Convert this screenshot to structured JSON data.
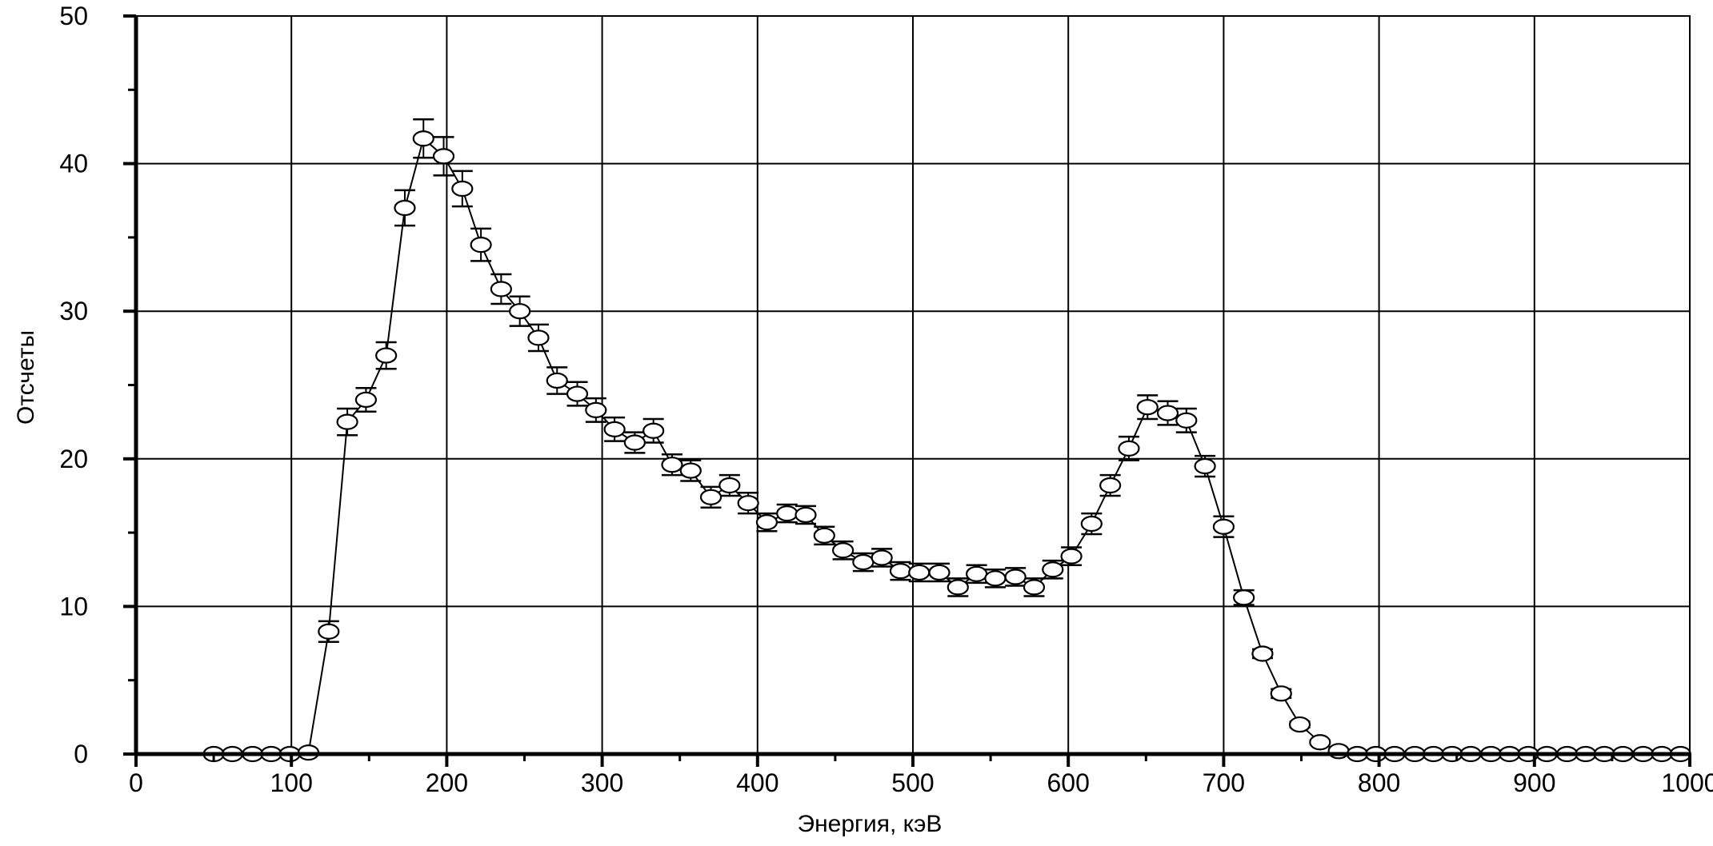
{
  "chart_data": {
    "type": "scatter",
    "title": "",
    "xlabel": "Энергия, кэВ",
    "ylabel": "Отсчеты",
    "xlim": [
      0,
      1000
    ],
    "ylim": [
      0,
      50
    ],
    "xticks": [
      "0",
      "100",
      "200",
      "300",
      "400",
      "500",
      "600",
      "700",
      "800",
      "900",
      "1000"
    ],
    "yticks": [
      "0",
      "10",
      "20",
      "30",
      "40",
      "50"
    ],
    "grid": true,
    "legend": "none",
    "marker": "open-ellipse",
    "line_color": "#000000",
    "series": [
      {
        "x": [
          50,
          62,
          75,
          87,
          99,
          111,
          124,
          136,
          148,
          161,
          173,
          185,
          198,
          210,
          222,
          235,
          247,
          259,
          271,
          284,
          296,
          308,
          321,
          333,
          345,
          357,
          370,
          382,
          394,
          406,
          419,
          431,
          443,
          455,
          468,
          480,
          492,
          504,
          517,
          529,
          541,
          553,
          566,
          578,
          590,
          602,
          615,
          627,
          639,
          651,
          664,
          676,
          688,
          700,
          713,
          725,
          737,
          749,
          762,
          774,
          786,
          798,
          810,
          823,
          835,
          847,
          859,
          872,
          884,
          896,
          908,
          921,
          933,
          945,
          957,
          970,
          982,
          994
        ],
        "y": [
          0,
          0,
          0,
          0,
          0,
          0.1,
          8.3,
          22.5,
          24.0,
          27.0,
          37.0,
          41.7,
          40.5,
          38.3,
          34.5,
          31.5,
          30.0,
          28.2,
          25.3,
          24.4,
          23.3,
          22.0,
          21.1,
          21.9,
          19.6,
          19.2,
          17.4,
          18.2,
          17.0,
          15.7,
          16.3,
          16.2,
          14.8,
          13.8,
          13.0,
          13.3,
          12.4,
          12.3,
          12.3,
          11.3,
          12.2,
          11.9,
          12.0,
          11.3,
          12.5,
          13.4,
          15.6,
          18.2,
          20.7,
          23.5,
          23.1,
          22.6,
          19.5,
          15.4,
          10.6,
          6.8,
          4.1,
          2.0,
          0.8,
          0.2,
          0,
          0,
          0,
          0,
          0,
          0,
          0,
          0,
          0,
          0,
          0,
          0,
          0,
          0,
          0,
          0,
          0,
          0
        ],
        "yerr": [
          0,
          0,
          0,
          0,
          0,
          0.1,
          0.7,
          0.9,
          0.8,
          0.9,
          1.2,
          1.3,
          1.3,
          1.2,
          1.1,
          1.0,
          1.0,
          0.9,
          0.9,
          0.8,
          0.8,
          0.8,
          0.7,
          0.8,
          0.7,
          0.7,
          0.7,
          0.7,
          0.7,
          0.6,
          0.6,
          0.6,
          0.6,
          0.6,
          0.6,
          0.6,
          0.6,
          0.6,
          0.6,
          0.6,
          0.6,
          0.6,
          0.6,
          0.6,
          0.6,
          0.6,
          0.7,
          0.7,
          0.8,
          0.8,
          0.8,
          0.8,
          0.7,
          0.7,
          0.5,
          0.3,
          0.3,
          0.2,
          0.1,
          0.1,
          0,
          0,
          0,
          0,
          0,
          0,
          0,
          0,
          0,
          0,
          0,
          0,
          0,
          0,
          0,
          0,
          0,
          0
        ]
      }
    ]
  }
}
